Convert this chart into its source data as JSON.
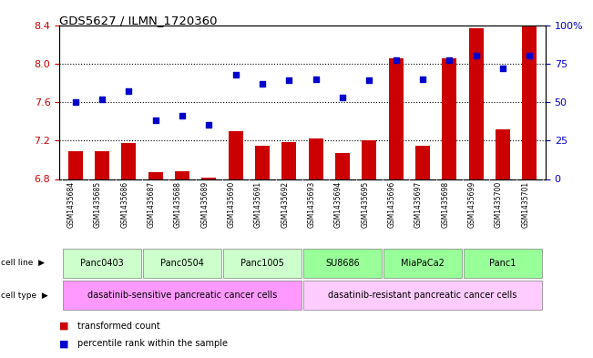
{
  "title": "GDS5627 / ILMN_1720360",
  "samples": [
    "GSM1435684",
    "GSM1435685",
    "GSM1435686",
    "GSM1435687",
    "GSM1435688",
    "GSM1435689",
    "GSM1435690",
    "GSM1435691",
    "GSM1435692",
    "GSM1435693",
    "GSM1435694",
    "GSM1435695",
    "GSM1435696",
    "GSM1435697",
    "GSM1435698",
    "GSM1435699",
    "GSM1435700",
    "GSM1435701"
  ],
  "transformed_count": [
    7.09,
    7.09,
    7.17,
    6.87,
    6.88,
    6.81,
    7.3,
    7.15,
    7.18,
    7.22,
    7.07,
    7.2,
    8.05,
    7.15,
    8.05,
    8.37,
    7.32,
    8.4
  ],
  "percentile_rank": [
    50,
    52,
    57,
    38,
    41,
    35,
    68,
    62,
    64,
    65,
    53,
    64,
    77,
    65,
    77,
    80,
    72,
    80
  ],
  "ylim_left": [
    6.8,
    8.4
  ],
  "ylim_right": [
    0,
    100
  ],
  "yticks_left": [
    6.8,
    7.2,
    7.6,
    8.0,
    8.4
  ],
  "yticks_right": [
    0,
    25,
    50,
    75,
    100
  ],
  "bar_color": "#cc0000",
  "dot_color": "#0000cc",
  "cell_lines": [
    {
      "label": "Panc0403",
      "start": 0,
      "end": 2,
      "color": "#ccffcc"
    },
    {
      "label": "Panc0504",
      "start": 3,
      "end": 5,
      "color": "#ccffcc"
    },
    {
      "label": "Panc1005",
      "start": 6,
      "end": 8,
      "color": "#ccffcc"
    },
    {
      "label": "SU8686",
      "start": 9,
      "end": 11,
      "color": "#99ff99"
    },
    {
      "label": "MiaPaCa2",
      "start": 12,
      "end": 14,
      "color": "#99ff99"
    },
    {
      "label": "Panc1",
      "start": 15,
      "end": 17,
      "color": "#99ff99"
    }
  ],
  "cell_types": [
    {
      "label": "dasatinib-sensitive pancreatic cancer cells",
      "start": 0,
      "end": 8,
      "color": "#ff99ff"
    },
    {
      "label": "dasatinib-resistant pancreatic cancer cells",
      "start": 9,
      "end": 17,
      "color": "#ffccff"
    }
  ],
  "bg_color": "#ffffff",
  "tick_color_left": "#cc0000",
  "tick_color_right": "#0000cc",
  "legend_items": [
    {
      "label": "transformed count",
      "color": "#cc0000"
    },
    {
      "label": "percentile rank within the sample",
      "color": "#0000cc"
    }
  ],
  "gsm_bg": "#cccccc"
}
